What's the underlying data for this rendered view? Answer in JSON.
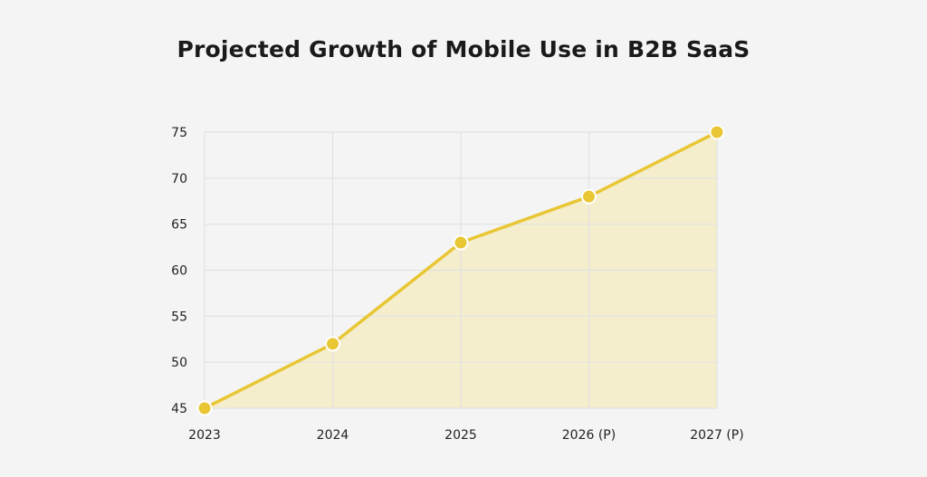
{
  "chart_data": {
    "type": "area",
    "title": "Projected Growth of Mobile Use in B2B SaaS",
    "xlabel": "",
    "ylabel": "",
    "categories": [
      "2023",
      "2024",
      "2025",
      "2026 (P)",
      "2027 (P)"
    ],
    "values": [
      45,
      52,
      63,
      68,
      75
    ],
    "ylim": [
      45,
      75
    ],
    "yticks": [
      45,
      50,
      55,
      60,
      65,
      70,
      75
    ],
    "grid": true,
    "legend": "none",
    "colors": {
      "line": "#e8c634",
      "fill": "#f5eecd",
      "marker": "#e8c634",
      "marker_stroke": "#ffffff",
      "grid": "#e2e2e2",
      "background": "#f4f4f4"
    }
  }
}
